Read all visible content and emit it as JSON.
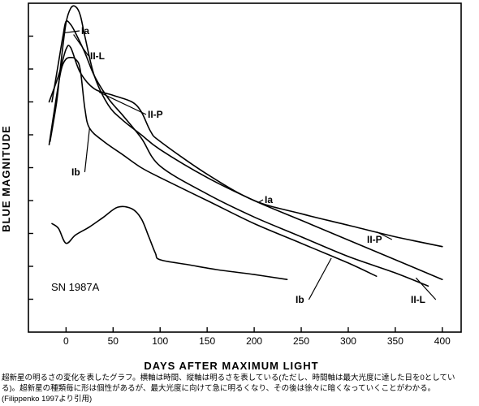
{
  "chart_data": {
    "type": "line",
    "xlabel": "DAYS AFTER MAXIMUM LIGHT",
    "ylabel": "BLUE MAGNITUDE",
    "xlim": [
      -40,
      420
    ],
    "ylim": [
      9.2,
      0
    ],
    "x_ticks": [
      0,
      50,
      100,
      150,
      200,
      250,
      300,
      350,
      400
    ],
    "y_minor_ticks": [
      1,
      2,
      3,
      4,
      5,
      6,
      7,
      8,
      9
    ],
    "y_reversed": true,
    "annotation": "SN 1987A",
    "series": [
      {
        "name": "Ia",
        "curve_labels": [
          "Ia",
          "Ia"
        ],
        "x": [
          -17,
          -10,
          -5,
          0,
          5,
          10,
          15,
          20,
          30,
          45,
          60,
          80,
          100,
          150,
          200,
          250,
          300,
          350,
          400
        ],
        "y": [
          4.2,
          3.0,
          1.7,
          0.6,
          0.15,
          0.1,
          0.35,
          1.0,
          2.2,
          3.1,
          3.55,
          4.0,
          4.45,
          5.3,
          6.0,
          6.6,
          7.2,
          7.8,
          8.4
        ]
      },
      {
        "name": "II-L",
        "curve_labels": [
          "II-L",
          "II-L"
        ],
        "x": [
          -15,
          -8,
          -3,
          0,
          5,
          10,
          20,
          30,
          45,
          60,
          80,
          100,
          150,
          200,
          250,
          300,
          350,
          385
        ],
        "y": [
          3.0,
          1.8,
          0.95,
          0.55,
          0.65,
          0.9,
          1.5,
          2.2,
          2.9,
          3.4,
          4.1,
          4.95,
          5.8,
          6.5,
          7.1,
          7.7,
          8.2,
          8.6
        ]
      },
      {
        "name": "II-P",
        "curve_labels": [
          "II-P",
          "II-P"
        ],
        "x": [
          -18,
          -8,
          0,
          5,
          15,
          30,
          50,
          70,
          80,
          90,
          100,
          150,
          200,
          250,
          300,
          350,
          400,
          425
        ],
        "y": [
          3.0,
          2.2,
          1.4,
          1.35,
          2.1,
          2.6,
          2.8,
          3.0,
          3.3,
          3.9,
          4.2,
          5.2,
          6.0,
          6.4,
          6.75,
          7.1,
          7.4,
          7.6
        ]
      },
      {
        "name": "Ib",
        "curve_labels": [
          "Ib",
          "Ib"
        ],
        "x": [
          -18,
          -10,
          -5,
          0,
          5,
          10,
          15,
          20,
          25,
          40,
          60,
          80,
          100,
          150,
          200,
          250,
          300,
          330
        ],
        "y": [
          4.3,
          2.8,
          2.0,
          1.7,
          1.65,
          1.7,
          2.0,
          3.2,
          3.8,
          4.2,
          4.6,
          5.0,
          5.3,
          6.0,
          6.7,
          7.3,
          7.9,
          8.3
        ]
      },
      {
        "name": "SN 1987A",
        "x": [
          -15,
          -8,
          0,
          10,
          25,
          40,
          55,
          70,
          80,
          88,
          95,
          100,
          130,
          160,
          200,
          235
        ],
        "y": [
          6.7,
          6.85,
          7.3,
          7.05,
          6.8,
          6.5,
          6.2,
          6.25,
          6.55,
          7.1,
          7.6,
          7.8,
          7.95,
          8.1,
          8.25,
          8.4
        ]
      }
    ]
  },
  "caption": {
    "line1": "超新星の明るさの変化を表したグラフ。横軸は時間、縦軸は明るさを表している(ただし、時間軸は最大光度に達した日を0としてい",
    "line2": "る)。超新星の種類毎に形は個性があるが、最大光度に向けて急に明るくなり、その後は徐々に暗くなっていくことがわかる。",
    "line3": "(Filippenko 1997より引用)"
  }
}
